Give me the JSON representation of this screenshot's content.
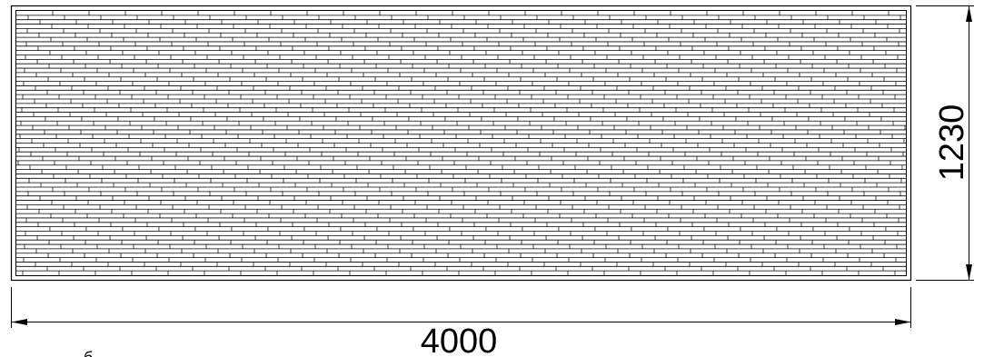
{
  "drawing": {
    "width_dimension": "4000",
    "height_dimension": "1230",
    "stray_mark": "б",
    "colors": {
      "line": "#000000",
      "background": "#ffffff"
    }
  }
}
